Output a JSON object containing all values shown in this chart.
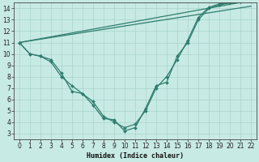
{
  "xlabel": "Humidex (Indice chaleur)",
  "bg_color": "#c8eae4",
  "line_color": "#2e7d6e",
  "grid_color": "#a8d4cc",
  "xlim": [
    -0.5,
    22.5
  ],
  "ylim": [
    2.5,
    14.5
  ],
  "yticks": [
    3,
    4,
    5,
    6,
    7,
    8,
    9,
    10,
    11,
    12,
    13,
    14
  ],
  "xticks": [
    0,
    1,
    2,
    3,
    4,
    5,
    6,
    7,
    8,
    9,
    10,
    11,
    12,
    13,
    14,
    15,
    16,
    17,
    18,
    19,
    20,
    21,
    22
  ],
  "series": [
    {
      "x": [
        0,
        1,
        2,
        3,
        4,
        5,
        6,
        7,
        8,
        9,
        10,
        11,
        12,
        13,
        14,
        15,
        16,
        17,
        18,
        19,
        20,
        21,
        22
      ],
      "y": [
        11.0,
        10.0,
        9.8,
        9.5,
        8.3,
        6.7,
        6.5,
        5.5,
        4.3,
        4.2,
        3.2,
        3.5,
        5.2,
        7.2,
        7.5,
        9.8,
        11.0,
        13.0,
        14.0,
        14.3,
        14.5,
        14.6,
        14.7
      ]
    },
    {
      "x": [
        0,
        1,
        2,
        3,
        4,
        5,
        6,
        7,
        8,
        9,
        10,
        11,
        12,
        13,
        14,
        15,
        16,
        17,
        18,
        19,
        20,
        21,
        22
      ],
      "y": [
        11.0,
        10.0,
        9.8,
        9.3,
        8.0,
        7.2,
        6.5,
        5.8,
        4.5,
        4.0,
        3.5,
        3.8,
        5.0,
        7.0,
        8.0,
        9.5,
        11.2,
        13.2,
        14.1,
        14.4,
        14.5,
        14.6,
        14.7
      ]
    },
    {
      "x": [
        0,
        22
      ],
      "y": [
        11.0,
        14.7
      ]
    },
    {
      "x": [
        0,
        22
      ],
      "y": [
        11.0,
        14.2
      ]
    }
  ],
  "xlabel_fontsize": 6,
  "tick_fontsize": 5.5,
  "linewidth": 0.9,
  "markersize": 2.0
}
